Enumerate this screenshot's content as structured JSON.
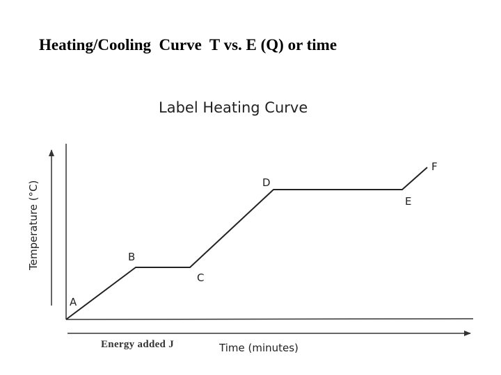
{
  "slide": {
    "title": "Heating/Cooling  Curve  T vs. E (Q) or time",
    "energy_note": "Energy added J"
  },
  "figure": {
    "title": "Label Heating Curve",
    "y_axis_label": "Temperature (°C)",
    "x_axis_label": "Time (minutes)",
    "points": [
      {
        "label": "A"
      },
      {
        "label": "B"
      },
      {
        "label": "C"
      },
      {
        "label": "D"
      },
      {
        "label": "E"
      },
      {
        "label": "F"
      }
    ]
  },
  "colors": {
    "line": "#222222",
    "axis": "#333333"
  }
}
